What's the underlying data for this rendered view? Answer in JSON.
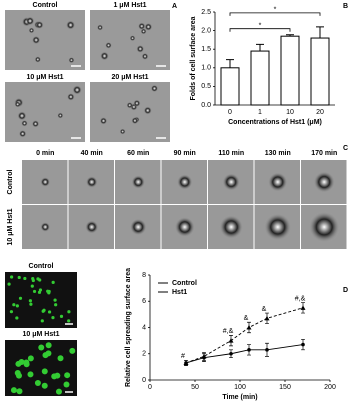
{
  "panel_a": {
    "letter": "A",
    "images": [
      "Control",
      "1 μM Hst1",
      "10 μM Hst1",
      "20 μM Hst1"
    ]
  },
  "panel_c": {
    "letter": "C",
    "times": [
      "0 min",
      "40 min",
      "60 min",
      "90 min",
      "110 min",
      "130 min",
      "170 min"
    ],
    "rows": [
      "Control",
      "10 μM Hst1"
    ]
  },
  "panel_d": {
    "letter": "D",
    "images": [
      "Control",
      "10 μM Hst1"
    ]
  },
  "chart_data": [
    {
      "type": "bar",
      "letter": "B",
      "ylabel": "Folds of cell surface area",
      "xlabel": "Concentrations of Hst1 (μM)",
      "categories": [
        "0",
        "1",
        "10",
        "20"
      ],
      "values": [
        1.0,
        1.45,
        1.85,
        1.8
      ],
      "errors": [
        0.22,
        0.18,
        0.04,
        0.3
      ],
      "color": "#ffffff",
      "ylim": [
        0,
        2.5
      ],
      "yticks": [
        {
          "value": 0,
          "label": "0.0"
        },
        {
          "value": 0.5,
          "label": "0.5"
        },
        {
          "value": 1,
          "label": "1.0"
        },
        {
          "value": 1.5,
          "label": "1.5"
        },
        {
          "value": 2,
          "label": "2.0"
        },
        {
          "value": 2.5,
          "label": "2.5"
        }
      ],
      "annotations": [
        "*",
        "*"
      ]
    },
    {
      "type": "line",
      "ylabel": "Relative cell spreading surface area",
      "xlabel": "Time (min)",
      "x": [
        40,
        60,
        90,
        110,
        130,
        170
      ],
      "xlim": [
        0,
        200
      ],
      "xticks": [
        0,
        50,
        100,
        150,
        200
      ],
      "ylim": [
        0,
        8
      ],
      "yticks": [
        0,
        2,
        4,
        6,
        8
      ],
      "legend": "upper-left",
      "series": [
        {
          "name": "Control",
          "color": "#000000",
          "linestyle": "solid",
          "values": [
            1.3,
            1.7,
            2.0,
            2.3,
            2.3,
            2.7
          ],
          "errors": [
            0.2,
            0.3,
            0.3,
            0.4,
            0.5,
            0.4
          ]
        },
        {
          "name": "Hst1",
          "color": "#000000",
          "linestyle": "dashed",
          "values": [
            1.3,
            1.8,
            3.0,
            4.0,
            4.7,
            5.5
          ],
          "errors": [
            0.2,
            0.3,
            0.4,
            0.4,
            0.4,
            0.4
          ]
        }
      ],
      "annotations": [
        "#",
        null,
        "#,&",
        "&",
        "&",
        "#,&"
      ]
    }
  ]
}
